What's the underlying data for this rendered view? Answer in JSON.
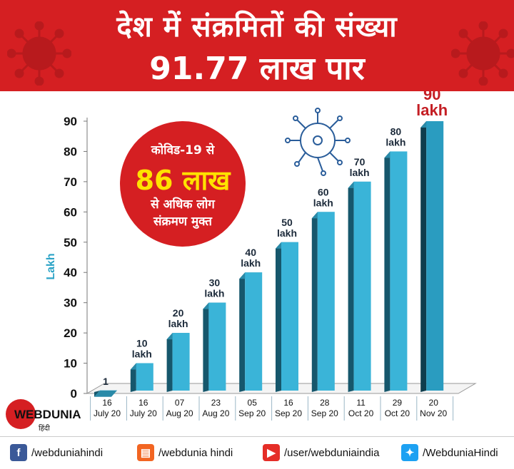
{
  "header": {
    "line1": "देश में संक्रमितों की संख्या",
    "line2": "91.77 लाख पार"
  },
  "badge": {
    "line1": "कोविड-19 से",
    "line2": "86 लाख",
    "line3": "से अधिक लोग",
    "line4": "संक्रमण मुक्त"
  },
  "chart_data": {
    "type": "bar",
    "categories": [
      "16\nJuly 20",
      "16\nJuly 20",
      "07\nAug 20",
      "23\nAug 20",
      "05\nSep 20",
      "16\nSep 20",
      "28\nSep 20",
      "11\nOct 20",
      "29\nOct 20",
      "20\nNov 20"
    ],
    "values": [
      1,
      10,
      20,
      30,
      40,
      50,
      60,
      70,
      80,
      90
    ],
    "data_labels": [
      "1",
      "10\nlakh",
      "20\nlakh",
      "30\nlakh",
      "40\nlakh",
      "50\nlakh",
      "60\nlakh",
      "70\nlakh",
      "80\nlakh",
      "90\nlakh"
    ],
    "ylabel": "Lakh",
    "yticks": [
      0,
      10,
      20,
      30,
      40,
      50,
      60,
      70,
      80,
      90
    ],
    "ylim": [
      0,
      90
    ],
    "colors": {
      "bar_front": "#3ab4d8",
      "bar_side": "#16576c",
      "bar_top": "#2a8aa8",
      "last_bar_front": "#2a9cc0",
      "last_bar_side": "#0e3d4d",
      "last_label": "#c41e24",
      "axis_label": "#2ba3c6"
    }
  },
  "logo": {
    "name": "WEBDUNIA",
    "sub": "हिंदी"
  },
  "footer": {
    "facebook": "/webduniahindi",
    "chat": "/webdunia hindi",
    "youtube": "/user/webduniaindia",
    "twitter": "/WebduniaHindi"
  }
}
